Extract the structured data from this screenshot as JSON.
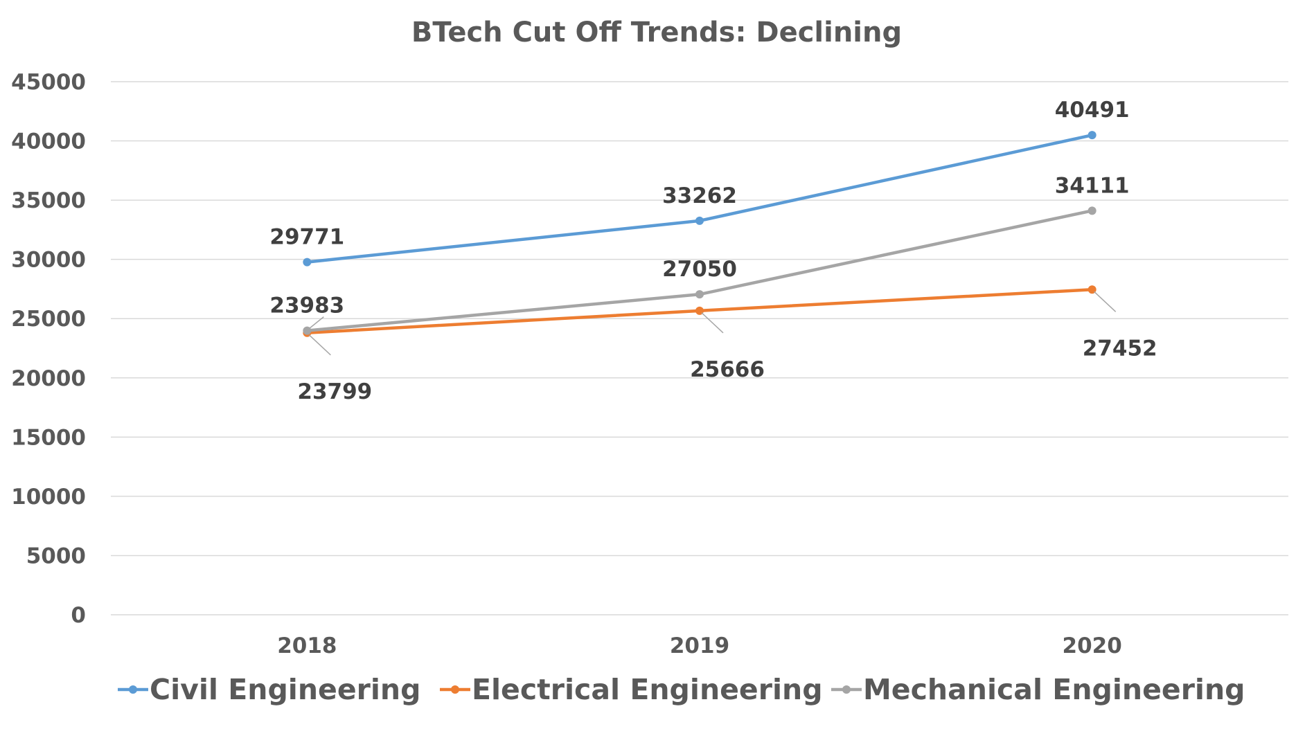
{
  "chart_data": {
    "type": "line",
    "title": "BTech Cut Off Trends: Declining",
    "xlabel": "",
    "ylabel": "",
    "categories": [
      "2018",
      "2019",
      "2020"
    ],
    "ylim": [
      0,
      45000
    ],
    "yticks": [
      "0",
      "5000",
      "10000",
      "15000",
      "20000",
      "25000",
      "30000",
      "35000",
      "40000",
      "45000"
    ],
    "grid": true,
    "legend_position": "bottom",
    "series": [
      {
        "name": "Civil Engineering",
        "color": "#5b9bd5",
        "values": [
          29771,
          33262,
          40491
        ],
        "labels": [
          "29771",
          "33262",
          "40491"
        ],
        "label_placement": [
          "above",
          "above",
          "above"
        ]
      },
      {
        "name": "Electrical Engineering",
        "color": "#ed7d31",
        "values": [
          23799,
          25666,
          27452
        ],
        "labels": [
          "23799",
          "25666",
          "27452"
        ],
        "label_placement": [
          "below-right",
          "below-right",
          "below-right"
        ]
      },
      {
        "name": "Mechanical Engineering",
        "color": "#a5a5a5",
        "values": [
          23983,
          27050,
          34111
        ],
        "labels": [
          "23983",
          "27050",
          "34111"
        ],
        "label_placement": [
          "above",
          "above",
          "above"
        ]
      }
    ]
  }
}
